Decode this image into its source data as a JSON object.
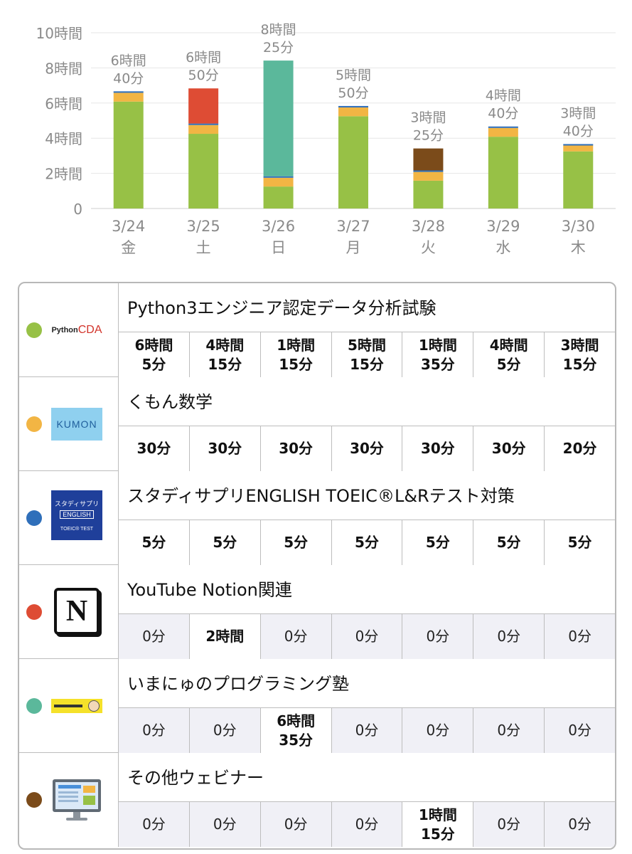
{
  "chart_data": {
    "type": "bar",
    "stacked": true,
    "categories": [
      "3/24",
      "3/25",
      "3/26",
      "3/27",
      "3/28",
      "3/29",
      "3/30"
    ],
    "weekdays": [
      "金",
      "土",
      "日",
      "月",
      "火",
      "水",
      "木"
    ],
    "y_ticks": [
      "0",
      "2時間",
      "4時間",
      "6時間",
      "8時間",
      "10時間"
    ],
    "ylim": [
      0,
      10
    ],
    "grid": true,
    "total_labels": [
      [
        "6時間",
        "40分"
      ],
      [
        "6時間",
        "50分"
      ],
      [
        "8時間",
        "25分"
      ],
      [
        "5時間",
        "50分"
      ],
      [
        "3時間",
        "25分"
      ],
      [
        "4時間",
        "40分"
      ],
      [
        "3時間",
        "40分"
      ]
    ],
    "series": [
      {
        "color": "#97c146",
        "values": [
          6.0833,
          4.25,
          1.25,
          5.25,
          1.5833,
          4.0833,
          3.25
        ]
      },
      {
        "color": "#f2b544",
        "values": [
          0.5,
          0.5,
          0.5,
          0.5,
          0.5,
          0.5,
          0.3333
        ]
      },
      {
        "color": "#2f6fba",
        "values": [
          0.0833,
          0.0833,
          0.0833,
          0.0833,
          0.0833,
          0.0833,
          0.0833
        ]
      },
      {
        "color": "#de4c34",
        "values": [
          0,
          2.0,
          0,
          0,
          0,
          0,
          0
        ]
      },
      {
        "color": "#5bb89b",
        "values": [
          0,
          0,
          6.5833,
          0,
          0,
          0,
          0
        ]
      },
      {
        "color": "#7b4b1a",
        "values": [
          0,
          0,
          0,
          0,
          1.25,
          0,
          0
        ]
      }
    ]
  },
  "table": {
    "subjects": [
      {
        "name": "Python3エンジニア認定データ分析試験",
        "dot_color": "#97c146",
        "logo": "python-cda-logo",
        "logo_text": {
          "a": "Python",
          "b": "CDA"
        },
        "cells": [
          {
            "lines": [
              "6時間",
              "5分"
            ],
            "active": true
          },
          {
            "lines": [
              "4時間",
              "15分"
            ],
            "active": true
          },
          {
            "lines": [
              "1時間",
              "15分"
            ],
            "active": true
          },
          {
            "lines": [
              "5時間",
              "15分"
            ],
            "active": true
          },
          {
            "lines": [
              "1時間",
              "35分"
            ],
            "active": true
          },
          {
            "lines": [
              "4時間",
              "5分"
            ],
            "active": true
          },
          {
            "lines": [
              "3時間",
              "15分"
            ],
            "active": true
          }
        ]
      },
      {
        "name": "くもん数学",
        "dot_color": "#f2b544",
        "logo": "kumon-logo",
        "logo_text": {
          "a": "KUMON"
        },
        "cells": [
          {
            "lines": [
              "30分"
            ],
            "active": true
          },
          {
            "lines": [
              "30分"
            ],
            "active": true
          },
          {
            "lines": [
              "30分"
            ],
            "active": true
          },
          {
            "lines": [
              "30分"
            ],
            "active": true
          },
          {
            "lines": [
              "30分"
            ],
            "active": true
          },
          {
            "lines": [
              "30分"
            ],
            "active": true
          },
          {
            "lines": [
              "20分"
            ],
            "active": true
          }
        ]
      },
      {
        "name": "スタディサプリENGLISH TOEIC®L&Rテスト対策",
        "dot_color": "#2f6fba",
        "logo": "studysapuri-logo",
        "logo_text": {
          "a": "スタディサプリ",
          "b": "ENGLISH",
          "c": "TOEIC® TEST"
        },
        "cells": [
          {
            "lines": [
              "5分"
            ],
            "active": true
          },
          {
            "lines": [
              "5分"
            ],
            "active": true
          },
          {
            "lines": [
              "5分"
            ],
            "active": true
          },
          {
            "lines": [
              "5分"
            ],
            "active": true
          },
          {
            "lines": [
              "5分"
            ],
            "active": true
          },
          {
            "lines": [
              "5分"
            ],
            "active": true
          },
          {
            "lines": [
              "5分"
            ],
            "active": true
          }
        ]
      },
      {
        "name": "YouTube Notion関連",
        "dot_color": "#de4c34",
        "logo": "notion-logo",
        "logo_text": {
          "a": "N"
        },
        "cells": [
          {
            "lines": [
              "0分"
            ],
            "active": false
          },
          {
            "lines": [
              "2時間"
            ],
            "active": true
          },
          {
            "lines": [
              "0分"
            ],
            "active": false
          },
          {
            "lines": [
              "0分"
            ],
            "active": false
          },
          {
            "lines": [
              "0分"
            ],
            "active": false
          },
          {
            "lines": [
              "0分"
            ],
            "active": false
          },
          {
            "lines": [
              "0分"
            ],
            "active": false
          }
        ]
      },
      {
        "name": "いまにゅのプログラミング塾",
        "dot_color": "#5bb89b",
        "logo": "imanyu-banner-logo",
        "cells": [
          {
            "lines": [
              "0分"
            ],
            "active": false
          },
          {
            "lines": [
              "0分"
            ],
            "active": false
          },
          {
            "lines": [
              "6時間",
              "35分"
            ],
            "active": true
          },
          {
            "lines": [
              "0分"
            ],
            "active": false
          },
          {
            "lines": [
              "0分"
            ],
            "active": false
          },
          {
            "lines": [
              "0分"
            ],
            "active": false
          },
          {
            "lines": [
              "0分"
            ],
            "active": false
          }
        ]
      },
      {
        "name": "その他ウェビナー",
        "dot_color": "#7b4b1a",
        "logo": "monitor-icon",
        "cells": [
          {
            "lines": [
              "0分"
            ],
            "active": false
          },
          {
            "lines": [
              "0分"
            ],
            "active": false
          },
          {
            "lines": [
              "0分"
            ],
            "active": false
          },
          {
            "lines": [
              "0分"
            ],
            "active": false
          },
          {
            "lines": [
              "1時間",
              "15分"
            ],
            "active": true
          },
          {
            "lines": [
              "0分"
            ],
            "active": false
          },
          {
            "lines": [
              "0分"
            ],
            "active": false
          }
        ]
      }
    ]
  }
}
